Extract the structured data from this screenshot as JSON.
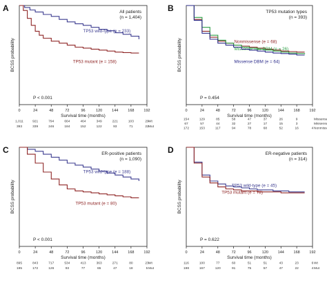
{
  "chart_data": [
    {
      "panel_letter": "A",
      "type": "line",
      "title": "All patients",
      "subtitle": "(n = 1,404)",
      "xlabel": "Survival time (months)",
      "ylabel": "BCSS probability",
      "xlim": [
        0,
        192
      ],
      "ylim": [
        0,
        1
      ],
      "xticks": [
        0,
        24,
        48,
        72,
        96,
        120,
        144,
        168,
        192
      ],
      "pvalue": "P < 0.001",
      "series": [
        {
          "name": "TP53 wild-type",
          "label": "TP53 wild-type (e = 233)",
          "color": "#3b3b8f",
          "x": [
            0,
            8,
            16,
            24,
            36,
            48,
            60,
            72,
            84,
            96,
            108,
            120,
            132,
            144,
            156,
            168,
            180
          ],
          "y": [
            1.0,
            0.98,
            0.955,
            0.935,
            0.91,
            0.89,
            0.86,
            0.835,
            0.815,
            0.8,
            0.78,
            0.76,
            0.745,
            0.725,
            0.71,
            0.69,
            0.66
          ]
        },
        {
          "name": "TP53 mutant",
          "label": "TP53 mutant (e = 158)",
          "color": "#8e2424",
          "x": [
            0,
            6,
            12,
            18,
            24,
            30,
            36,
            48,
            60,
            72,
            84,
            96,
            108,
            120,
            132,
            144,
            156,
            168,
            180
          ],
          "y": [
            1.0,
            0.95,
            0.87,
            0.8,
            0.74,
            0.7,
            0.67,
            0.64,
            0.62,
            0.6,
            0.58,
            0.57,
            0.56,
            0.55,
            0.54,
            0.53,
            0.525,
            0.52,
            0.52
          ]
        }
      ],
      "risk_table": [
        {
          "values": [
            "1,011",
            "921",
            "794",
            "664",
            "464",
            "349",
            "221",
            "103",
            "29"
          ],
          "label": "Wt"
        },
        {
          "values": [
            "393",
            "339",
            "246",
            "184",
            "152",
            "122",
            "93",
            "71",
            "22"
          ],
          "label": "Mut"
        }
      ]
    },
    {
      "panel_letter": "B",
      "type": "line",
      "title": "TP53 mutation types",
      "subtitle": "(n = 393)",
      "xlabel": "Survival time (months)",
      "ylabel": "BCSS probability",
      "xlim": [
        0,
        192
      ],
      "ylim": [
        0,
        1
      ],
      "xticks": [
        0,
        24,
        48,
        72,
        96,
        120,
        144,
        168,
        192
      ],
      "pvalue": "P = 0.454",
      "series": [
        {
          "name": "Nonmissense",
          "label": "Nonmissense (e = 68)",
          "color": "#8e2424",
          "x": [
            0,
            12,
            24,
            36,
            48,
            60,
            72,
            84,
            96,
            108,
            120,
            132,
            144,
            156,
            168,
            180
          ],
          "y": [
            1.0,
            0.86,
            0.74,
            0.68,
            0.64,
            0.62,
            0.6,
            0.59,
            0.58,
            0.57,
            0.56,
            0.55,
            0.54,
            0.535,
            0.53,
            0.53
          ]
        },
        {
          "name": "Missense non-DBM",
          "label": "Missense non-DBM (e = 26)",
          "color": "#2e9e46",
          "x": [
            0,
            12,
            24,
            36,
            48,
            60,
            72,
            84,
            96,
            108,
            120,
            132,
            144,
            156,
            168,
            180
          ],
          "y": [
            1.0,
            0.88,
            0.78,
            0.7,
            0.65,
            0.62,
            0.6,
            0.58,
            0.57,
            0.56,
            0.55,
            0.54,
            0.53,
            0.52,
            0.515,
            0.51
          ]
        },
        {
          "name": "Missense DBM",
          "label": "Missense DBM (e = 64)",
          "color": "#2a2a8a",
          "x": [
            0,
            12,
            24,
            36,
            48,
            60,
            72,
            84,
            96,
            108,
            120,
            132,
            144,
            156,
            168,
            180
          ],
          "y": [
            1.0,
            0.85,
            0.72,
            0.66,
            0.62,
            0.6,
            0.58,
            0.56,
            0.55,
            0.54,
            0.53,
            0.52,
            0.515,
            0.51,
            0.5,
            0.5
          ]
        }
      ],
      "risk_table": [
        {
          "values": [
            "154",
            "129",
            "85",
            "58",
            "47",
            "37",
            "26",
            "9",
            ""
          ],
          "label": "Missense_DBM"
        },
        {
          "values": [
            "67",
            "57",
            "44",
            "32",
            "27",
            "17",
            "15",
            "3",
            ""
          ],
          "label": "Missense_nonDBM"
        },
        {
          "values": [
            "172",
            "153",
            "117",
            "94",
            "78",
            "68",
            "52",
            "16",
            "4"
          ],
          "label": "Nonmissense"
        }
      ]
    },
    {
      "panel_letter": "C",
      "type": "line",
      "title": "ER-positive patients",
      "subtitle": "(n = 1,090)",
      "xlabel": "Survival time (months)",
      "ylabel": "BCSS probability",
      "xlim": [
        0,
        192
      ],
      "ylim": [
        0,
        1
      ],
      "xticks": [
        0,
        24,
        48,
        72,
        96,
        120,
        144,
        168,
        192
      ],
      "pvalue": "P < 0.001",
      "series": [
        {
          "name": "TP53 wild-type",
          "label": "TP53 wild-type (e = 188)",
          "color": "#3b3b8f",
          "x": [
            0,
            12,
            24,
            36,
            48,
            60,
            72,
            84,
            96,
            108,
            120,
            132,
            144,
            156,
            168,
            180
          ],
          "y": [
            1.0,
            0.98,
            0.96,
            0.93,
            0.9,
            0.87,
            0.84,
            0.82,
            0.8,
            0.78,
            0.76,
            0.74,
            0.72,
            0.7,
            0.68,
            0.66
          ]
        },
        {
          "name": "TP53 mutant",
          "label": "TP53 mutant (e = 80)",
          "color": "#8e2424",
          "x": [
            0,
            12,
            24,
            36,
            48,
            60,
            72,
            84,
            96,
            108,
            120,
            132,
            144,
            156,
            168,
            180
          ],
          "y": [
            1.0,
            0.93,
            0.84,
            0.75,
            0.68,
            0.62,
            0.58,
            0.56,
            0.55,
            0.54,
            0.53,
            0.52,
            0.51,
            0.5,
            0.49,
            0.49
          ]
        }
      ],
      "risk_table": [
        {
          "values": [
            "895",
            "843",
            "717",
            "534",
            "413",
            "363",
            "271",
            "80",
            "23"
          ],
          "label": "Wt"
        },
        {
          "values": [
            "195",
            "172",
            "126",
            "93",
            "77",
            "65",
            "47",
            "18",
            "5"
          ],
          "label": "Mut"
        }
      ]
    },
    {
      "panel_letter": "D",
      "type": "line",
      "title": "ER-negative patients",
      "subtitle": "(n = 314)",
      "xlabel": "Survival time (months)",
      "ylabel": "BCSS probability",
      "xlim": [
        0,
        192
      ],
      "ylim": [
        0,
        1
      ],
      "xticks": [
        0,
        24,
        48,
        72,
        96,
        120,
        144,
        168,
        192
      ],
      "pvalue": "P = 0.622",
      "series": [
        {
          "name": "TP53 wild-type",
          "label": "TP53 wild-type (e = 45)",
          "color": "#3b3b8f",
          "x": [
            0,
            12,
            24,
            36,
            48,
            60,
            72,
            84,
            96,
            108,
            120,
            132,
            144,
            156,
            168,
            180
          ],
          "y": [
            1.0,
            0.85,
            0.72,
            0.66,
            0.63,
            0.61,
            0.6,
            0.59,
            0.58,
            0.57,
            0.57,
            0.56,
            0.56,
            0.55,
            0.55,
            0.55
          ]
        },
        {
          "name": "TP53 mutant",
          "label": "TP53 mutant (e = 78)",
          "color": "#8e2424",
          "x": [
            0,
            12,
            24,
            36,
            48,
            60,
            72,
            84,
            96,
            108,
            120,
            132,
            144,
            156,
            168,
            180
          ],
          "y": [
            1.0,
            0.84,
            0.7,
            0.64,
            0.6,
            0.58,
            0.57,
            0.56,
            0.56,
            0.55,
            0.55,
            0.55,
            0.54,
            0.54,
            0.54,
            0.54
          ]
        }
      ],
      "risk_table": [
        {
          "values": [
            "116",
            "100",
            "77",
            "60",
            "51",
            "51",
            "43",
            "23",
            "6"
          ],
          "label": "Wt"
        },
        {
          "values": [
            "198",
            "167",
            "120",
            "91",
            "75",
            "57",
            "47",
            "22",
            "4"
          ],
          "label": "Mut"
        }
      ]
    }
  ]
}
